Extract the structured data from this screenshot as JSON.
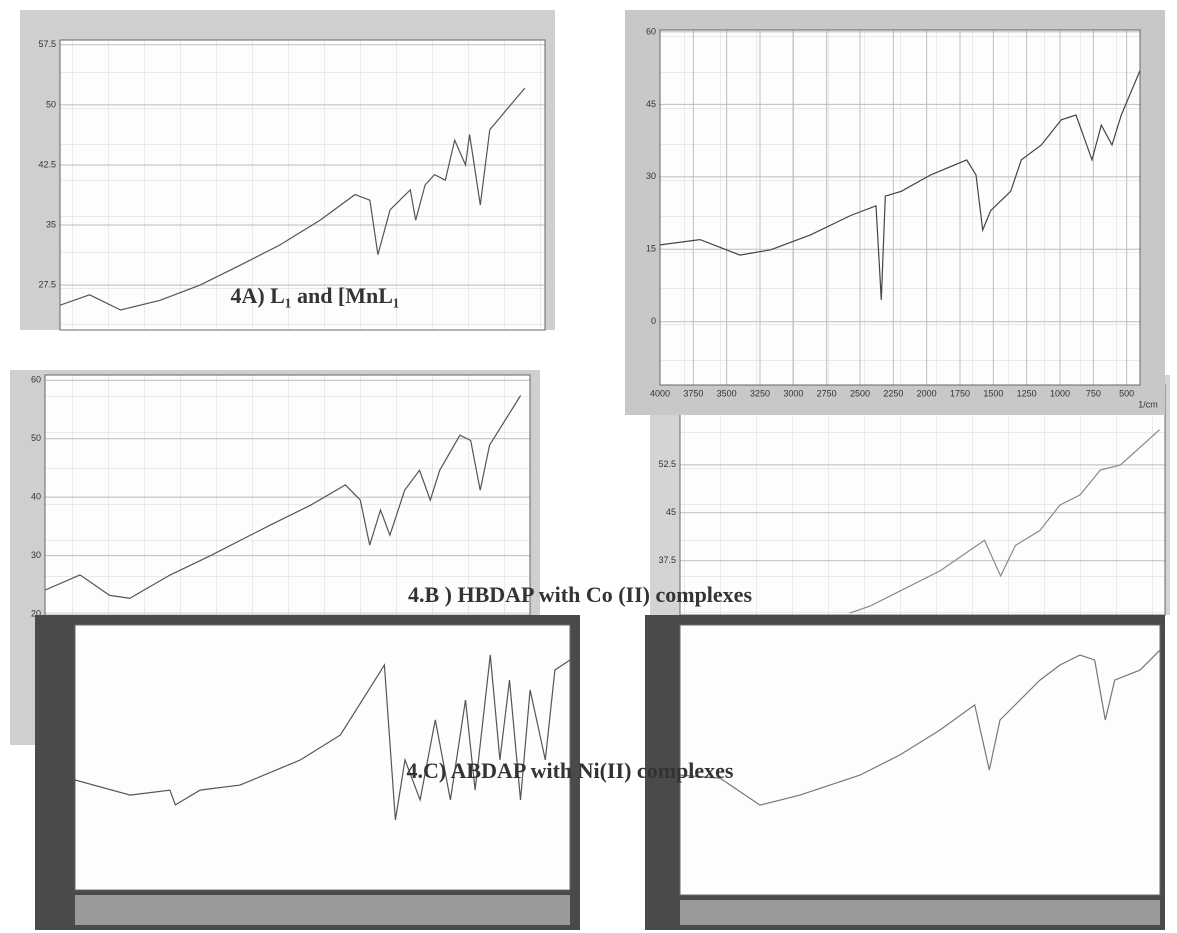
{
  "captions": [
    "4A) L₁ and [MnL₁",
    "4.B ) HBDAP with Co (II) complexes",
    "4.C) ABDAP with Ni(II) complexes"
  ],
  "chart_data": [
    {
      "type": "line",
      "color": "#555555",
      "xlim": [
        4000,
        400
      ],
      "ylim": [
        21.9,
        58.1
      ],
      "yticks": [
        57.5,
        50,
        42.5,
        35,
        27.5
      ],
      "grid": true,
      "x": [
        4000,
        3780,
        3550,
        3260,
        2960,
        2660,
        2370,
        2070,
        1810,
        1700,
        1640,
        1550,
        1400,
        1360,
        1290,
        1220,
        1140,
        1070,
        990,
        960,
        880,
        810,
        590,
        550
      ],
      "values": [
        25,
        26.3,
        24.4,
        25.6,
        27.5,
        30,
        32.5,
        35.6,
        38.8,
        38.1,
        31.3,
        36.9,
        39.4,
        35.6,
        40,
        41.3,
        40.6,
        45.6,
        42.5,
        46.3,
        37.5,
        46.9,
        51.3,
        52.1
      ]
    },
    {
      "type": "line",
      "color": "#444444",
      "xlim": [
        4000,
        400
      ],
      "ylim": [
        -13.1,
        60.4
      ],
      "yticks": [
        60,
        45,
        30,
        15,
        0
      ],
      "xticks": [
        4000,
        3750,
        3500,
        3250,
        3000,
        2750,
        2500,
        2250,
        2000,
        1750,
        1500,
        1250,
        1000,
        750,
        500
      ],
      "xlabel": "1/cm",
      "grid": true,
      "x": [
        4000,
        3700,
        3400,
        3170,
        2870,
        2570,
        2380,
        2340,
        2310,
        2190,
        1970,
        1700,
        1630,
        1580,
        1520,
        1370,
        1290,
        1140,
        990,
        880,
        760,
        690,
        610,
        540,
        400
      ],
      "values": [
        15.9,
        17,
        13.8,
        14.9,
        18,
        22,
        24,
        4.5,
        26,
        27,
        30.4,
        33.5,
        30.4,
        19,
        23,
        27,
        33.5,
        36.6,
        41.8,
        42.8,
        33.5,
        40.7,
        36.6,
        42.8,
        52
      ]
    },
    {
      "type": "line",
      "color": "#555555",
      "xlim": [
        4000,
        400
      ],
      "ylim": [
        -2.4,
        60.9
      ],
      "yticks": [
        60,
        50,
        40,
        30,
        20
      ],
      "grid": true,
      "x": [
        4000,
        3740,
        3520,
        3370,
        3070,
        2780,
        2330,
        2030,
        1770,
        1660,
        1590,
        1510,
        1440,
        1330,
        1220,
        1140,
        1070,
        920,
        840,
        770,
        700,
        470
      ],
      "values": [
        24.1,
        26.7,
        23.2,
        22.7,
        26.7,
        29.9,
        35.2,
        38.6,
        42.1,
        39.5,
        31.8,
        37.8,
        33.5,
        41.2,
        44.6,
        39.5,
        44.6,
        50.6,
        49.7,
        41.2,
        48.9,
        57.4
      ]
    },
    {
      "type": "line",
      "color": "#888888",
      "xlim": [
        4000,
        400
      ],
      "ylim": [
        29,
        65
      ],
      "yticks": [
        52.5,
        45,
        37.5
      ],
      "grid": true,
      "x": [
        2740,
        2590,
        2070,
        1740,
        1620,
        1510,
        1330,
        1180,
        1030,
        880,
        730,
        440
      ],
      "values": [
        29.3,
        30.4,
        35.9,
        40.7,
        35.1,
        39.9,
        42.2,
        46.2,
        47.8,
        51.7,
        52.5,
        58.0
      ]
    },
    {
      "type": "line",
      "color": "#555555",
      "xlim": [
        4000,
        400
      ],
      "ylim": [
        0,
        100
      ],
      "grid": false,
      "x": [
        4000,
        3600,
        3310,
        3270,
        3090,
        2800,
        2360,
        2070,
        1750,
        1670,
        1600,
        1490,
        1380,
        1270,
        1160,
        1090,
        980,
        910,
        840,
        760,
        690,
        580,
        510,
        400
      ],
      "values": [
        41.5,
        35.8,
        37.7,
        32.1,
        37.7,
        39.6,
        49.1,
        58.5,
        84.9,
        26.4,
        49.1,
        34.0,
        64.2,
        34.0,
        71.7,
        37.7,
        88.7,
        49.1,
        79.2,
        34.0,
        75.5,
        49.1,
        83.0,
        86.8
      ]
    },
    {
      "type": "line",
      "color": "#777777",
      "xlim": [
        4000,
        400
      ],
      "ylim": [
        0,
        100
      ],
      "grid": false,
      "x": [
        4000,
        3700,
        3400,
        3100,
        2650,
        2350,
        2050,
        1790,
        1680,
        1600,
        1450,
        1300,
        1150,
        1000,
        890,
        810,
        740,
        550,
        400
      ],
      "values": [
        44.4,
        43.3,
        33.3,
        37.0,
        44.4,
        51.9,
        61.1,
        70.4,
        46.3,
        64.8,
        72.2,
        79.6,
        85.2,
        88.9,
        87.0,
        64.8,
        79.6,
        83.3,
        90.7
      ]
    }
  ]
}
